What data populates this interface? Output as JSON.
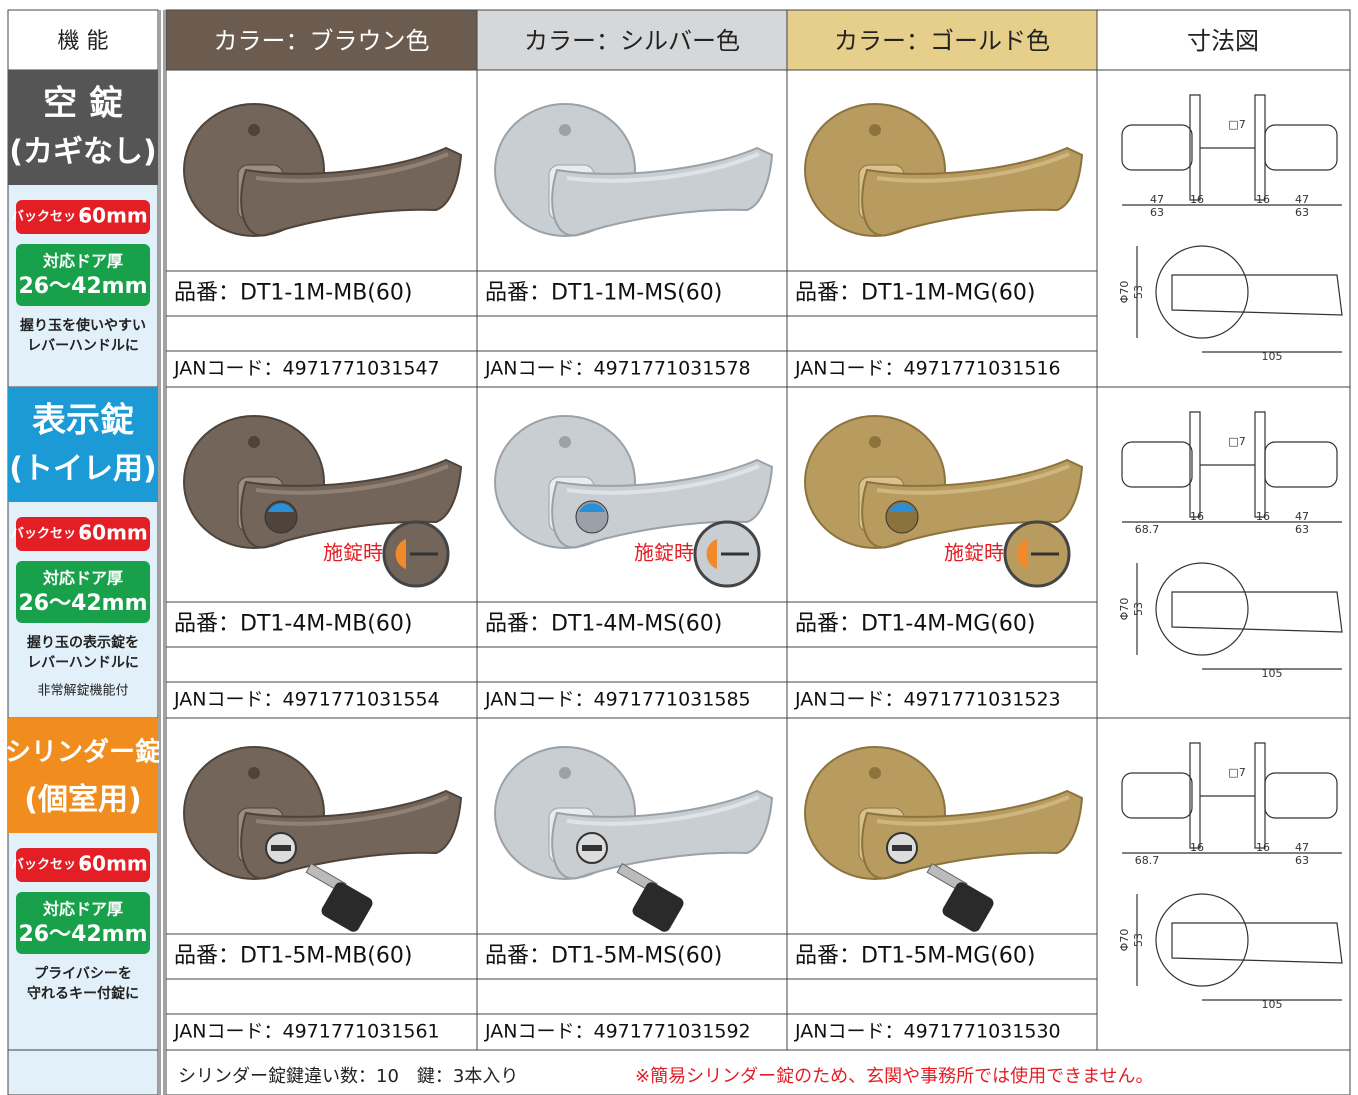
{
  "header": {
    "feature": "機 能",
    "colors": [
      "カラー：ブラウン色",
      "カラー：シルバー色",
      "カラー：ゴールド色"
    ],
    "dimension": "寸法図"
  },
  "rows": [
    {
      "title": [
        "空 錠",
        "(カギなし)"
      ],
      "backset": {
        "label": "バックセット",
        "value": "60mm"
      },
      "door": {
        "label": "対応ドア厚",
        "value": "26〜42mm"
      },
      "notes": [
        "握り玉を使いやすい",
        "レバーハンドルに"
      ],
      "products": [
        {
          "part": "品番：DT1-1M-MB(60)",
          "jan": "JANコード：4971771031547"
        },
        {
          "part": "品番：DT1-1M-MS(60)",
          "jan": "JANコード：4971771031578"
        },
        {
          "part": "品番：DT1-1M-MG(60)",
          "jan": "JANコード：4971771031516"
        }
      ],
      "dimensions": {
        "side": [
          "47",
          "16",
          "63",
          "16",
          "47",
          "63",
          "□7"
        ],
        "front": [
          "Φ70",
          "53",
          "105"
        ]
      }
    },
    {
      "title": [
        "表示錠",
        "(トイレ用)"
      ],
      "backset": {
        "label": "バックセット",
        "value": "60mm"
      },
      "door": {
        "label": "対応ドア厚",
        "value": "26〜42mm"
      },
      "notes": [
        "握り玉の表示錠を",
        "レバーハンドルに"
      ],
      "note_small": "非常解錠機能付",
      "locked_label": "施錠時",
      "products": [
        {
          "part": "品番：DT1-4M-MB(60)",
          "jan": "JANコード：4971771031554"
        },
        {
          "part": "品番：DT1-4M-MS(60)",
          "jan": "JANコード：4971771031585"
        },
        {
          "part": "品番：DT1-4M-MG(60)",
          "jan": "JANコード：4971771031523"
        }
      ],
      "dimensions": {
        "side": [
          "68.7",
          "16",
          "16",
          "47",
          "63",
          "□7"
        ],
        "front": [
          "Φ70",
          "53",
          "105"
        ]
      }
    },
    {
      "title": [
        "シリンダー錠",
        "(個室用)"
      ],
      "backset": {
        "label": "バックセット",
        "value": "60mm"
      },
      "door": {
        "label": "対応ドア厚",
        "value": "26〜42mm"
      },
      "notes": [
        "プライバシーを",
        "守れるキー付錠に"
      ],
      "products": [
        {
          "part": "品番：DT1-5M-MB(60)",
          "jan": "JANコード：4971771031561"
        },
        {
          "part": "品番：DT1-5M-MS(60)",
          "jan": "JANコード：4971771031592"
        },
        {
          "part": "品番：DT1-5M-MG(60)",
          "jan": "JANコード：4971771031530"
        }
      ],
      "dimensions": {
        "side": [
          "68.7",
          "16",
          "16",
          "47",
          "63",
          "□7"
        ],
        "front": [
          "Φ70",
          "53",
          "105"
        ]
      }
    }
  ],
  "footer": {
    "cylinder_note": "シリンダー錠鍵違い数：10　鍵：3本入り",
    "warning": "※簡易シリンダー錠のため、玄関や事務所では使用できません。"
  }
}
